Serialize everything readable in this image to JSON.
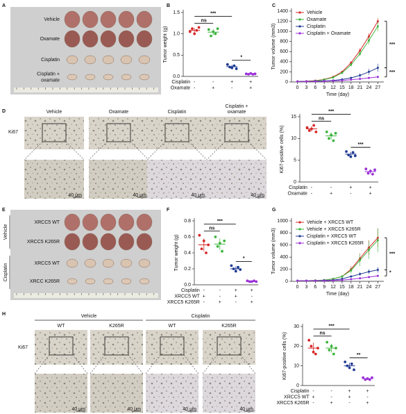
{
  "panel_labels": [
    "A",
    "B",
    "C",
    "D",
    "E",
    "F",
    "G",
    "H"
  ],
  "photo_A": {
    "row_labels": [
      [
        "Vehicle"
      ],
      [
        "Oxamate"
      ],
      [
        "Cisplatin"
      ],
      [
        "Cisplatin +",
        "oxamate"
      ]
    ]
  },
  "micro_D": {
    "stain": "Ki67",
    "columns": [
      [
        "Vehicle"
      ],
      [
        "Oxamate"
      ],
      [
        "Cisplatin"
      ],
      [
        "Cisplatin +",
        "oxamate"
      ]
    ],
    "scale_bar": "40 μm"
  },
  "photo_E": {
    "groups": [
      "Vehicle",
      "Cisplatin"
    ],
    "row_labels": [
      "XRCC5 WT",
      "XRCC5 K265R",
      "XRCC5 WT",
      "XRCC K265R"
    ]
  },
  "micro_H": {
    "stain": "Ki67",
    "groups": [
      "Vehicle",
      "Cisplatin"
    ],
    "columns": [
      "WT",
      "K265R",
      "WT",
      "K265R"
    ],
    "scale_bar": "40 μm"
  },
  "chart_data": [
    {
      "type": "dot",
      "ylabel": "Tumor weight (g)",
      "ylim": [
        0,
        1.5
      ],
      "yticks": [
        {
          "value": 0,
          "label": "0.0"
        },
        {
          "value": 0.5,
          "label": "0.5"
        },
        {
          "value": 1,
          "label": "1.0"
        },
        {
          "value": 1.5,
          "label": "1.5"
        }
      ],
      "groups": [
        {
          "color": "#d62728",
          "values": [
            1.05,
            1.12,
            1.0,
            1.08,
            1.15
          ],
          "mean": 1.08,
          "sd": 0.06
        },
        {
          "color": "#3cb43c",
          "values": [
            1.1,
            0.95,
            1.05,
            1.0,
            1.12
          ],
          "mean": 1.04,
          "sd": 0.07
        },
        {
          "color": "#1f3a93",
          "values": [
            0.28,
            0.22,
            0.2,
            0.25,
            0.18
          ],
          "mean": 0.23,
          "sd": 0.04
        },
        {
          "color": "#9b30d9",
          "values": [
            0.06,
            0.05,
            0.07,
            0.05,
            0.06
          ],
          "mean": 0.06,
          "sd": 0.01
        }
      ],
      "treatments": [
        {
          "name": "Cisplatin",
          "signs": [
            "-",
            "-",
            "+",
            "+"
          ]
        },
        {
          "name": "Oxamate",
          "signs": [
            "-",
            "+",
            "-",
            "+"
          ]
        }
      ],
      "annotations": [
        "ns",
        "***",
        "*"
      ]
    },
    {
      "type": "line",
      "xlabel": "Time (day)",
      "ylabel": "Tumor volume (mm3)",
      "x": [
        0,
        3,
        6,
        9,
        12,
        15,
        18,
        21,
        24,
        27
      ],
      "xlim": [
        -2,
        29
      ],
      "xticks": [
        0,
        3,
        6,
        9,
        12,
        15,
        18,
        21,
        24,
        27
      ],
      "ylim": [
        0,
        1400
      ],
      "yticks": [
        0,
        200,
        400,
        600,
        800,
        1000,
        1200,
        1400
      ],
      "legend": "upper left",
      "series": [
        {
          "name": "Vehicle",
          "color": "#d62728",
          "values": [
            10,
            15,
            25,
            50,
            100,
            200,
            380,
            620,
            900,
            1200
          ],
          "errors": [
            2,
            3,
            5,
            8,
            12,
            20,
            30,
            45,
            60,
            60
          ]
        },
        {
          "name": "Oxamate",
          "color": "#3cb43c",
          "values": [
            10,
            12,
            20,
            45,
            90,
            180,
            340,
            560,
            820,
            1100
          ],
          "errors": [
            2,
            3,
            5,
            8,
            12,
            20,
            30,
            50,
            80,
            100
          ]
        },
        {
          "name": "Cisplatin",
          "color": "#1f3a93",
          "values": [
            10,
            10,
            15,
            20,
            30,
            50,
            80,
            130,
            200,
            280
          ],
          "errors": [
            2,
            2,
            3,
            5,
            8,
            15,
            25,
            40,
            60,
            80
          ]
        },
        {
          "name": "Cisplatin + Oxamate",
          "color": "#9b30d9",
          "values": [
            10,
            10,
            10,
            15,
            20,
            30,
            45,
            60,
            80,
            100
          ],
          "errors": [
            2,
            2,
            2,
            3,
            5,
            8,
            12,
            15,
            20,
            25
          ]
        }
      ],
      "annotations": [
        "***",
        "***"
      ]
    },
    {
      "type": "dot",
      "ylabel": "Ki67-positive cells (%)",
      "ylim": [
        0,
        15
      ],
      "yticks": [
        0,
        5,
        10,
        15
      ],
      "groups": [
        {
          "color": "#d62728",
          "values": [
            12.5,
            11.8,
            12.2,
            13.0,
            11.5
          ],
          "mean": 12.2,
          "sd": 0.6
        },
        {
          "color": "#3cb43c",
          "values": [
            11.5,
            10.0,
            10.8,
            9.5,
            11.2
          ],
          "mean": 10.6,
          "sd": 0.8
        },
        {
          "color": "#1f3a93",
          "values": [
            7.0,
            6.2,
            5.8,
            6.8,
            6.0
          ],
          "mean": 6.4,
          "sd": 0.5
        },
        {
          "color": "#9b30d9",
          "values": [
            3.0,
            2.0,
            2.5,
            1.8,
            2.8
          ],
          "mean": 2.4,
          "sd": 0.5
        }
      ],
      "treatments": [
        {
          "name": "Cisplatin",
          "signs": [
            "-",
            "-",
            "+",
            "+"
          ]
        },
        {
          "name": "Oxamate",
          "signs": [
            "-",
            "+",
            "-",
            "+"
          ]
        }
      ],
      "annotations": [
        "ns",
        "***",
        "***"
      ]
    },
    {
      "type": "dot",
      "ylabel": "Tumor weight (g)",
      "ylim": [
        0,
        0.8
      ],
      "yticks": [
        {
          "value": 0,
          "label": "0.0"
        },
        {
          "value": 0.2,
          "label": "0.2"
        },
        {
          "value": 0.4,
          "label": "0.4"
        },
        {
          "value": 0.6,
          "label": "0.6"
        },
        {
          "value": 0.8,
          "label": "0.8"
        }
      ],
      "groups": [
        {
          "color": "#d62728",
          "values": [
            0.62,
            0.45,
            0.55,
            0.4,
            0.5
          ],
          "mean": 0.5,
          "sd": 0.08
        },
        {
          "color": "#3cb43c",
          "values": [
            0.6,
            0.48,
            0.52,
            0.42,
            0.55
          ],
          "mean": 0.51,
          "sd": 0.07
        },
        {
          "color": "#1f3a93",
          "values": [
            0.24,
            0.2,
            0.17,
            0.22,
            0.19
          ],
          "mean": 0.2,
          "sd": 0.03
        },
        {
          "color": "#9b30d9",
          "values": [
            0.05,
            0.04,
            0.04,
            0.05,
            0.04
          ],
          "mean": 0.04,
          "sd": 0.01
        }
      ],
      "treatments": [
        {
          "name": "Cisplatin",
          "signs": [
            "-",
            "-",
            "+",
            "+"
          ]
        },
        {
          "name": "XRCC5 WT",
          "signs": [
            "+",
            "-",
            "+",
            "-"
          ]
        },
        {
          "name": "XRCC5 K265R",
          "signs": [
            "-",
            "+",
            "-",
            "+"
          ]
        }
      ],
      "annotations": [
        "ns",
        "***",
        "*"
      ]
    },
    {
      "type": "line",
      "xlabel": "Time (day)",
      "ylabel": "Tumor volume (mm3)",
      "x": [
        0,
        3,
        6,
        9,
        12,
        15,
        18,
        21,
        24,
        27
      ],
      "xlim": [
        -2,
        29
      ],
      "xticks": [
        0,
        3,
        6,
        9,
        12,
        15,
        18,
        21,
        24,
        27
      ],
      "ylim": [
        0,
        1000
      ],
      "yticks": [
        0,
        200,
        400,
        600,
        800,
        1000
      ],
      "legend": "upper left",
      "series": [
        {
          "name": "Vehicle + XRCC5 WT",
          "color": "#d62728",
          "values": [
            10,
            10,
            15,
            20,
            40,
            80,
            200,
            380,
            560,
            720
          ],
          "errors": [
            2,
            2,
            3,
            5,
            8,
            20,
            50,
            80,
            120,
            150
          ]
        },
        {
          "name": "Vehicle + XRCC5 K265R",
          "color": "#3cb43c",
          "values": [
            10,
            10,
            15,
            20,
            40,
            80,
            180,
            350,
            520,
            680
          ],
          "errors": [
            2,
            2,
            3,
            5,
            8,
            20,
            50,
            100,
            150,
            200
          ]
        },
        {
          "name": "Cisplatin + XRCC5 WT",
          "color": "#1f3a93",
          "values": [
            10,
            10,
            10,
            15,
            20,
            40,
            80,
            120,
            160,
            190
          ],
          "errors": [
            2,
            2,
            2,
            3,
            5,
            10,
            20,
            30,
            40,
            45
          ]
        },
        {
          "name": "Cisplatin + XRCC5 K265R",
          "color": "#9b30d9",
          "values": [
            10,
            10,
            10,
            10,
            15,
            20,
            35,
            50,
            70,
            90
          ],
          "errors": [
            2,
            2,
            2,
            2,
            3,
            5,
            8,
            10,
            12,
            15
          ]
        }
      ],
      "annotations": [
        "***",
        "*"
      ]
    },
    {
      "type": "dot",
      "ylabel": "Ki67-positive cells (%)",
      "ylim": [
        0,
        30
      ],
      "yticks": [
        0,
        10,
        20,
        30
      ],
      "groups": [
        {
          "color": "#d62728",
          "values": [
            23,
            20,
            17,
            16,
            19
          ],
          "mean": 19,
          "sd": 2.8
        },
        {
          "color": "#3cb43c",
          "values": [
            22,
            18,
            20,
            16,
            19
          ],
          "mean": 19,
          "sd": 2.2
        },
        {
          "color": "#1f3a93",
          "values": [
            12,
            10,
            9,
            11,
            8
          ],
          "mean": 10,
          "sd": 1.5
        },
        {
          "color": "#9b30d9",
          "values": [
            4,
            3,
            3.5,
            3,
            4
          ],
          "mean": 3.5,
          "sd": 0.5
        }
      ],
      "treatments": [
        {
          "name": "Cisplatin",
          "signs": [
            "-",
            "-",
            "+",
            "+"
          ]
        },
        {
          "name": "XRCC5 WT",
          "signs": [
            "+",
            "-",
            "+",
            "-"
          ]
        },
        {
          "name": "XRCC5 K265R",
          "signs": [
            "-",
            "+",
            "-",
            "+"
          ]
        }
      ],
      "annotations": [
        "ns",
        "***",
        "**"
      ]
    }
  ]
}
